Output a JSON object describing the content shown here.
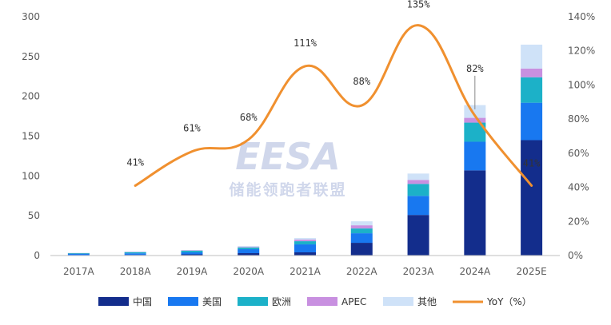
{
  "chart_data": {
    "type": "bar",
    "stacked": true,
    "categories": [
      "2017A",
      "2018A",
      "2019A",
      "2020A",
      "2021A",
      "2022A",
      "2023A",
      "2024A",
      "2025E"
    ],
    "series": [
      {
        "name": "中国",
        "color": "#132D8C",
        "values": [
          0.5,
          0.8,
          1.5,
          3,
          4,
          16,
          51,
          107,
          145
        ]
      },
      {
        "name": "美国",
        "color": "#1878F0",
        "values": [
          1.5,
          2,
          2.5,
          5,
          10,
          12,
          24,
          36,
          47
        ]
      },
      {
        "name": "欧洲",
        "color": "#1CB1C8",
        "values": [
          1,
          1.5,
          2,
          2,
          4,
          6,
          15,
          24,
          32
        ]
      },
      {
        "name": "APEC",
        "color": "#C890E0",
        "values": [
          0.3,
          0.4,
          0.5,
          0.8,
          2,
          4,
          5,
          6,
          11
        ]
      },
      {
        "name": "其他",
        "color": "#CFE2F8",
        "values": [
          0.2,
          0.3,
          0.5,
          1.2,
          2,
          5,
          8,
          16,
          30
        ]
      }
    ],
    "line": {
      "name": "YoY（%）",
      "color": "#F0902F",
      "categories": [
        "2018A",
        "2019A",
        "2020A",
        "2021A",
        "2022A",
        "2023A",
        "2024A",
        "2025E"
      ],
      "values": [
        41,
        61,
        68,
        111,
        88,
        135,
        82,
        41
      ],
      "labels": [
        "41%",
        "61%",
        "68%",
        "111%",
        "88%",
        "135%",
        "82%",
        "41%"
      ]
    },
    "ylim_left": [
      0,
      300
    ],
    "yticks_left": [
      "0",
      "50",
      "100",
      "150",
      "200",
      "250",
      "300"
    ],
    "ylim_right": [
      0,
      140
    ],
    "yticks_right": [
      "0%",
      "20%",
      "40%",
      "60%",
      "80%",
      "100%",
      "120%",
      "140%"
    ],
    "grid": false,
    "legend_position": "bottom"
  },
  "watermark": {
    "logo_text": "EESA",
    "subtitle": "储能领跑者联盟"
  }
}
